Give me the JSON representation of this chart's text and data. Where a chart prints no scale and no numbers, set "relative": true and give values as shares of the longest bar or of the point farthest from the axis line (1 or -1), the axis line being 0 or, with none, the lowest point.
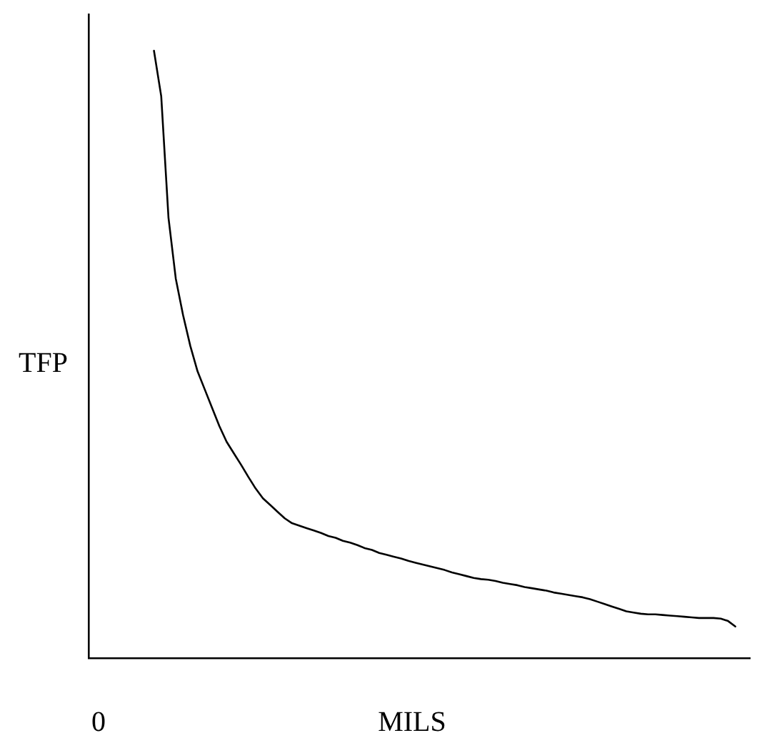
{
  "chart_data": {
    "type": "line",
    "xlabel": "MILS",
    "ylabel": "TFP",
    "relative": true,
    "annotations": [
      "0"
    ],
    "legend": false,
    "marker": "none",
    "line_style": "solid",
    "categories": [
      null,
      null,
      null,
      null,
      null,
      null,
      null,
      null,
      null,
      null,
      null,
      null,
      null,
      null,
      null,
      null,
      null,
      null,
      null,
      null,
      null,
      null,
      null,
      null,
      null,
      null,
      null,
      null,
      null,
      null,
      null,
      null,
      null,
      null,
      null,
      null,
      null,
      null,
      null,
      null,
      null,
      null,
      null,
      null,
      null,
      null,
      null,
      null,
      null,
      null,
      null,
      null,
      null,
      null,
      null,
      null,
      null,
      null,
      null,
      null,
      null,
      null,
      null,
      null,
      null,
      null,
      null,
      null,
      null,
      null,
      null,
      null,
      null,
      null,
      null,
      null,
      null,
      null,
      null,
      null,
      null,
      null,
      null,
      null,
      null,
      null,
      null,
      null,
      null,
      null,
      null,
      null
    ],
    "series": [
      {
        "color": "#000000",
        "values": [
          null,
          null,
          null,
          null,
          null,
          null,
          null,
          null,
          null,
          1.0,
          0.925,
          0.725,
          0.625,
          0.565,
          0.514,
          0.472,
          0.442,
          0.412,
          0.382,
          0.356,
          0.337,
          0.318,
          0.298,
          0.279,
          0.263,
          0.252,
          0.241,
          0.23,
          0.222,
          0.218,
          0.214,
          0.21,
          0.206,
          0.201,
          0.198,
          0.193,
          0.19,
          0.186,
          0.181,
          0.178,
          0.173,
          0.17,
          0.167,
          0.164,
          0.16,
          0.157,
          0.154,
          0.151,
          0.148,
          0.145,
          0.141,
          0.138,
          0.135,
          0.132,
          0.13,
          0.129,
          0.127,
          0.124,
          0.122,
          0.12,
          0.117,
          0.115,
          0.113,
          0.111,
          0.108,
          0.106,
          0.104,
          0.102,
          0.1,
          0.097,
          0.093,
          0.089,
          0.085,
          0.081,
          0.077,
          0.075,
          0.073,
          0.072,
          0.072,
          0.071,
          0.07,
          0.069,
          0.068,
          0.067,
          0.066,
          0.066,
          0.066,
          0.065,
          0.061,
          0.052,
          null,
          null
        ]
      }
    ]
  }
}
